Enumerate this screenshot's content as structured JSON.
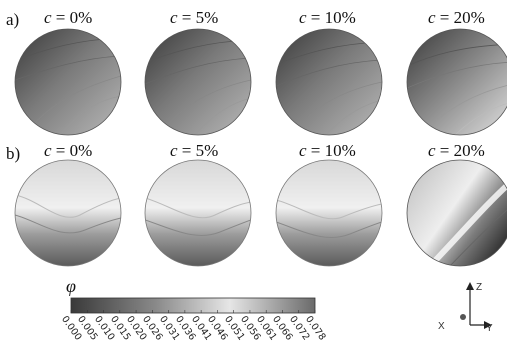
{
  "rows": [
    {
      "label": "a)",
      "panels": [
        {
          "c_label": "c",
          "c_value": "= 0%",
          "pattern": "a"
        },
        {
          "c_label": "c",
          "c_value": "= 5%",
          "pattern": "a"
        },
        {
          "c_label": "c",
          "c_value": "= 10%",
          "pattern": "a"
        },
        {
          "c_label": "c",
          "c_value": "= 20%",
          "pattern": "a"
        }
      ]
    },
    {
      "label": "b)",
      "panels": [
        {
          "c_label": "c",
          "c_value": "= 0%",
          "pattern": "b"
        },
        {
          "c_label": "c",
          "c_value": "= 5%",
          "pattern": "b"
        },
        {
          "c_label": "c",
          "c_value": "= 10%",
          "pattern": "b"
        },
        {
          "c_label": "c",
          "c_value": "= 20%",
          "pattern": "b20"
        }
      ]
    }
  ],
  "colorbar": {
    "symbol": "φ",
    "ticks": [
      "0.000",
      "0.005",
      "0.010",
      "0.015",
      "0.020",
      "0.026",
      "0.031",
      "0.036",
      "0.041",
      "0.046",
      "0.051",
      "0.056",
      "0.061",
      "0.066",
      "0.072",
      "0.078"
    ]
  },
  "axes": {
    "z": "Z",
    "x": "X",
    "y": "Y"
  },
  "colors": {
    "dark": "#3c3c3c",
    "light": "#ebebeb",
    "mid": "#9a9a9a"
  }
}
